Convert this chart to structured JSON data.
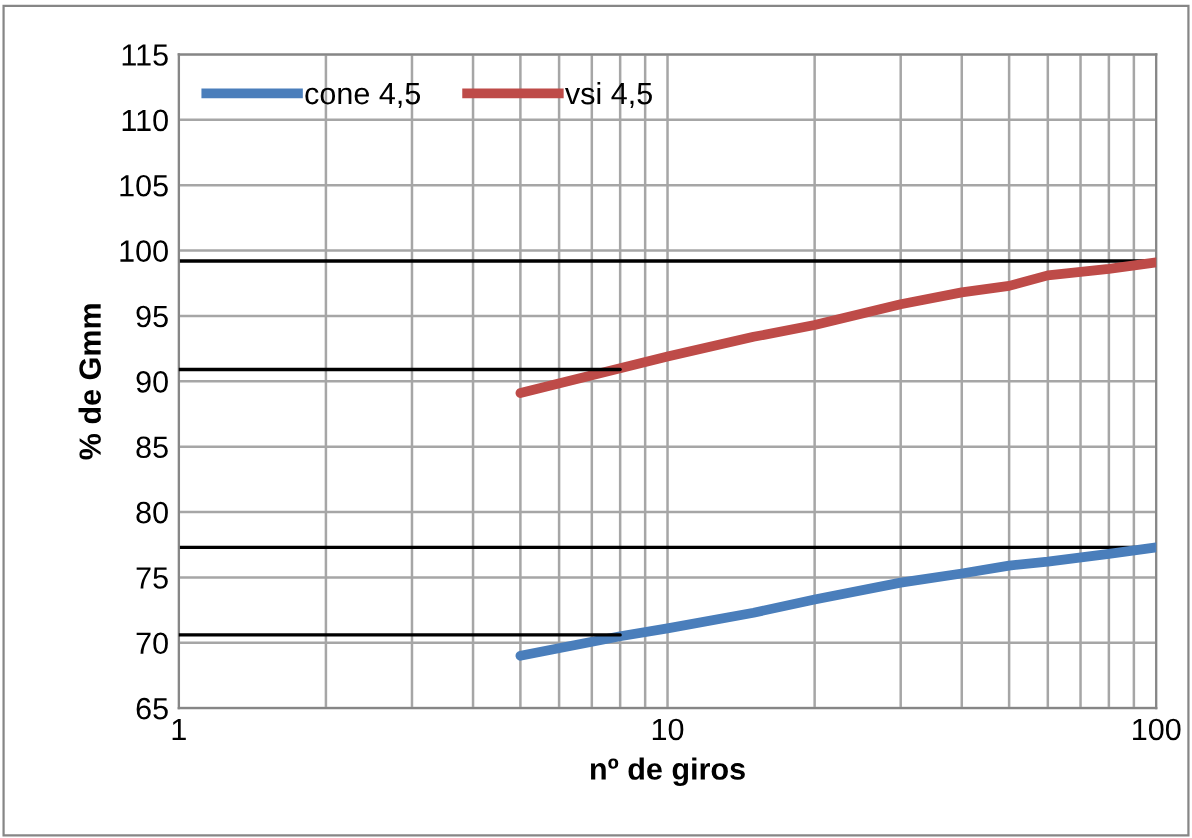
{
  "chart_data": {
    "type": "line",
    "xlabel": "nº de giros",
    "ylabel": "% de Gmm",
    "log": "x",
    "xlim": [
      1,
      100
    ],
    "xticks": [
      1,
      10,
      100
    ],
    "ylim": [
      65,
      115
    ],
    "yticks": [
      65,
      70,
      75,
      80,
      85,
      90,
      95,
      100,
      105,
      110,
      115
    ],
    "grid": true,
    "legend": "top left",
    "line_style": "solid",
    "marker": "none",
    "series": [
      {
        "name": "cone 4,5",
        "color": "#4a7ebb",
        "x": [
          5,
          8,
          10,
          15,
          20,
          30,
          40,
          50,
          60,
          80,
          100
        ],
        "values": [
          69.0,
          70.5,
          71.1,
          72.3,
          73.3,
          74.6,
          75.3,
          75.9,
          76.2,
          76.8,
          77.3
        ]
      },
      {
        "name": "vsi 4,5",
        "color": "#be4b48",
        "x": [
          5,
          8,
          10,
          15,
          20,
          30,
          40,
          50,
          60,
          80,
          100
        ],
        "values": [
          89.1,
          91.0,
          91.9,
          93.4,
          94.3,
          95.9,
          96.8,
          97.3,
          98.1,
          98.6,
          99.1
        ]
      },
      {
        "color": "#000000",
        "x": [
          1,
          8
        ],
        "values": [
          90.9,
          90.9
        ]
      },
      {
        "color": "#000000",
        "x": [
          1,
          8
        ],
        "values": [
          70.6,
          70.6
        ]
      }
    ],
    "ref_lines": [
      {
        "axis": "y",
        "value": 99.2,
        "color": "#000000"
      },
      {
        "axis": "y",
        "value": 77.3,
        "color": "#000000"
      }
    ]
  }
}
